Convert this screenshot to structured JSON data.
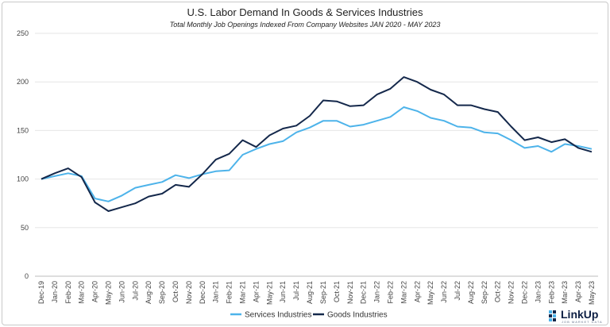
{
  "chart_data": {
    "type": "line",
    "title": "U.S. Labor Demand In Goods & Services Industries",
    "subtitle": "Total Monthly Job Openings Indexed From Company Websites JAN 2020 - MAY 2023",
    "xlabel": "",
    "ylabel": "",
    "ylim": [
      0,
      250
    ],
    "yticks": [
      0,
      50,
      100,
      150,
      200,
      250
    ],
    "grid": true,
    "legend_position": "bottom",
    "categories": [
      "Dec-19",
      "Jan-20",
      "Feb-20",
      "Mar-20",
      "Apr-20",
      "May-20",
      "Jun-20",
      "Jul-20",
      "Aug-20",
      "Sep-20",
      "Oct-20",
      "Nov-20",
      "Dec-20",
      "Jan-21",
      "Feb-21",
      "Mar-21",
      "Apr-21",
      "May-21",
      "Jun-21",
      "Jul-21",
      "Aug-21",
      "Sep-21",
      "Oct-21",
      "Nov-21",
      "Dec-21",
      "Jan-22",
      "Feb-22",
      "Mar-22",
      "Apr-22",
      "May-22",
      "Jun-22",
      "Jul-22",
      "Aug-22",
      "Sep-22",
      "Oct-22",
      "Nov-22",
      "Dec-22",
      "Jan-23",
      "Feb-23",
      "Mar-23",
      "Apr-23",
      "May-23"
    ],
    "series": [
      {
        "name": "Services Industries",
        "color": "#4db3ea",
        "values": [
          100,
          103,
          106,
          103,
          80,
          77,
          83,
          91,
          94,
          97,
          104,
          101,
          105,
          108,
          109,
          125,
          131,
          136,
          139,
          148,
          153,
          160,
          160,
          154,
          156,
          160,
          164,
          174,
          170,
          163,
          160,
          154,
          153,
          148,
          147,
          140,
          132,
          134,
          128,
          136,
          134,
          131
        ]
      },
      {
        "name": "Goods Industries",
        "color": "#14284b",
        "values": [
          100,
          106,
          111,
          102,
          76,
          67,
          71,
          75,
          82,
          85,
          94,
          92,
          105,
          120,
          126,
          140,
          133,
          145,
          152,
          155,
          165,
          181,
          180,
          175,
          176,
          187,
          193,
          205,
          200,
          192,
          187,
          176,
          176,
          172,
          169,
          154,
          140,
          143,
          138,
          141,
          132,
          128
        ]
      }
    ]
  },
  "logo": {
    "text": "LinkUp",
    "tagline": "JOB MARKET DATA"
  }
}
